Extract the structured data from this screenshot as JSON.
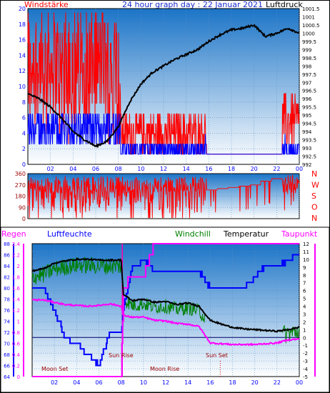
{
  "header": {
    "title": "24 hour graph day : 22 Januar 2021",
    "left_label": "Windstärke",
    "right_label": "Luftdruck"
  },
  "panel_dir": {
    "labels": [
      "N",
      "W",
      "S",
      "O",
      "N"
    ],
    "y_ticks": [
      "360",
      "270",
      "180",
      "90",
      "0"
    ]
  },
  "panel_bottom": {
    "legend": {
      "regen": "Regen",
      "luftfeuchte": "Luftfeuchte",
      "windchill": "Windchill",
      "temperatur": "Temperatur",
      "taupunkt": "Taupunkt"
    },
    "annotations": {
      "moon_set": "Moon Set",
      "sun_rise": "Sun Rise",
      "moon_rise": "Moon Rise",
      "sun_set": "Sun Set"
    }
  },
  "colors": {
    "windstaerke": "#ff0000",
    "luftdruck": "#000000",
    "gust_blue": "#0000ff",
    "regen": "#ff00ff",
    "luftfeuchte": "#0000ff",
    "windchill": "#008000",
    "temperatur": "#000000",
    "taupunkt": "#ff00ff",
    "axis_left_bottom": "#0000ff",
    "frame_bg_top": "#1b74c7",
    "frame_bg_bottom": "#ffffff"
  },
  "chart_data": [
    {
      "type": "line",
      "x_ticks": [
        "02",
        "04",
        "06",
        "08",
        "10",
        "12",
        "14",
        "16",
        "18",
        "20",
        "22",
        "00"
      ],
      "y_left": {
        "label": "Windstärke",
        "range": [
          0,
          20
        ],
        "ticks": [
          "0",
          "2",
          "4",
          "6",
          "8",
          "10",
          "12",
          "14",
          "16",
          "18",
          "20"
        ]
      },
      "y_right": {
        "label": "Luftdruck",
        "range": [
          992,
          1001.5
        ],
        "ticks": [
          "992",
          "992.5",
          "993",
          "993.5",
          "994",
          "994.5",
          "995",
          "995.5",
          "996",
          "996.5",
          "997",
          "997.5",
          "998",
          "998.5",
          "999",
          "999.5",
          "1000",
          "1000.5",
          "1001",
          "1001.5"
        ]
      },
      "series": [
        {
          "name": "Luftdruck",
          "x": [
            0,
            1,
            2,
            3,
            4,
            5,
            6,
            7,
            8,
            9,
            10,
            11,
            12,
            13,
            14,
            15,
            16,
            17,
            18,
            19,
            20,
            21,
            22,
            23,
            24
          ],
          "values": [
            996.3,
            996.0,
            995.5,
            994.8,
            994.0,
            993.5,
            993.1,
            993.4,
            994.3,
            995.8,
            996.9,
            997.6,
            998.0,
            998.4,
            998.7,
            999.0,
            999.5,
            999.9,
            1000.2,
            1000.3,
            1000.5,
            999.8,
            1000.0,
            1000.3,
            1000.0
          ]
        }
      ]
    },
    {
      "type": "line",
      "y": {
        "range": [
          0,
          360
        ],
        "ticks": [
          "0",
          "90",
          "180",
          "270",
          "360"
        ]
      }
    },
    {
      "type": "line",
      "x_ticks": [
        "02",
        "04",
        "06",
        "08",
        "10",
        "12",
        "14",
        "16",
        "18",
        "20",
        "22",
        "00"
      ],
      "y_left_regen": {
        "label": "Regen",
        "range": [
          0,
          2.4
        ],
        "ticks": [
          "0",
          "0.2",
          "0.4",
          "0.6",
          "0.8",
          "1",
          "1.2",
          "1.4",
          "1.6",
          "1.8",
          "2",
          "2.2",
          "2.4"
        ]
      },
      "y_left_feuchte": {
        "label": "Luftfeuchte",
        "range": [
          64,
          88
        ],
        "ticks": [
          "64",
          "66",
          "68",
          "70",
          "72",
          "74",
          "76",
          "78",
          "80",
          "82",
          "84",
          "86",
          "88"
        ]
      },
      "y_right": {
        "label": "Temperatur",
        "range": [
          -5,
          12
        ],
        "ticks": [
          "-5",
          "-4",
          "-3",
          "-2",
          "-1",
          "0",
          "1",
          "2",
          "3",
          "4",
          "5",
          "6",
          "7",
          "8",
          "9",
          "10",
          "11",
          "12"
        ]
      },
      "series": [
        {
          "name": "Temperatur",
          "x": [
            0,
            1,
            2,
            3,
            4,
            5,
            6,
            7,
            8,
            8.2,
            9,
            10,
            11,
            12,
            13,
            14,
            15,
            16,
            17,
            18,
            19,
            20,
            21,
            22,
            23,
            24
          ],
          "values": [
            8.5,
            8.8,
            9.5,
            9.8,
            10.0,
            10.0,
            9.9,
            9.9,
            9.9,
            5.5,
            4.7,
            4.9,
            4.5,
            4.6,
            4.2,
            4.4,
            4.0,
            2.2,
            1.7,
            1.3,
            1.1,
            1.0,
            0.9,
            0.8,
            1.0,
            1.3
          ]
        },
        {
          "name": "Taupunkt",
          "x": [
            0,
            1,
            2,
            3,
            4,
            5,
            6,
            7,
            8,
            8.2,
            9,
            10,
            11,
            12,
            13,
            14,
            15,
            16,
            17,
            18,
            19,
            20,
            21,
            22,
            23,
            24
          ],
          "values": [
            4.8,
            4.8,
            4.5,
            4.2,
            4.1,
            4.0,
            4.1,
            4.3,
            4.0,
            2.8,
            2.6,
            2.6,
            2.2,
            2.1,
            1.8,
            1.7,
            1.4,
            -0.7,
            -0.8,
            -0.9,
            -0.9,
            -0.9,
            -0.8,
            -0.7,
            -0.3,
            -0.2
          ]
        },
        {
          "name": "Luftfeuchte",
          "x": [
            0,
            1,
            2,
            3,
            4,
            5,
            6,
            7,
            8,
            8.2,
            9,
            10,
            11,
            12,
            13,
            14,
            15,
            16,
            17,
            18,
            19,
            20,
            21,
            22,
            23,
            24
          ],
          "values": [
            80,
            80,
            76,
            71,
            70,
            68,
            66,
            72,
            72,
            76,
            84,
            85,
            83,
            83,
            83,
            83,
            83,
            80,
            80,
            80,
            80,
            82,
            84,
            84,
            85,
            86
          ]
        },
        {
          "name": "Regen",
          "x": [
            0,
            8,
            8.2,
            9,
            10,
            11,
            12,
            13,
            14,
            15,
            16,
            17,
            18,
            19,
            20,
            21,
            22,
            23,
            24
          ],
          "values": [
            0,
            0,
            1.6,
            1.8,
            1.8,
            2.4,
            2.4,
            2.4,
            2.4,
            2.4,
            2.4,
            2.4,
            2.4,
            2.4,
            2.4,
            2.4,
            2.4,
            2.4,
            2.4
          ]
        }
      ]
    }
  ]
}
